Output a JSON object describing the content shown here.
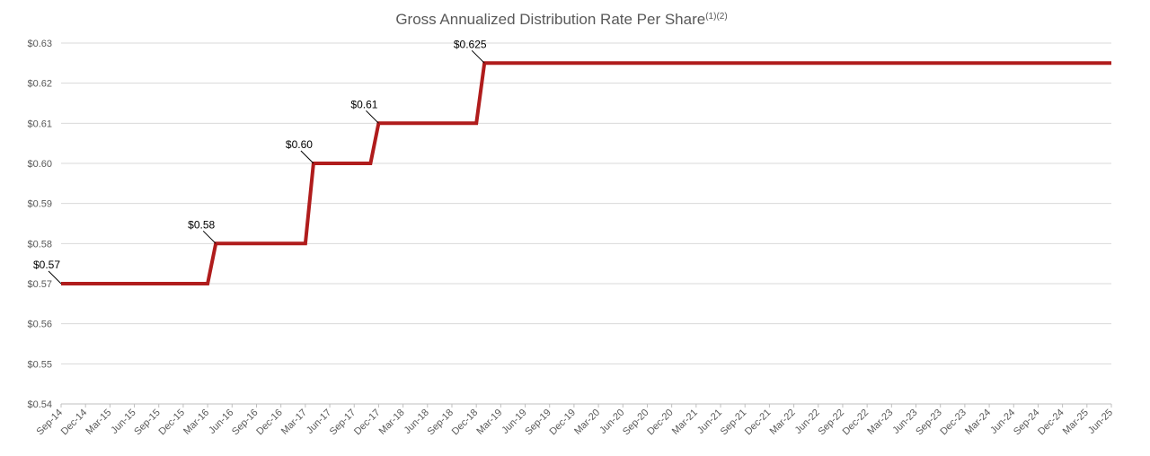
{
  "chart_data": {
    "type": "line",
    "title": "Gross Annualized Distribution Rate Per Share",
    "title_superscript": "(1)(2)",
    "xlabel": "",
    "ylabel": "",
    "ylim": [
      0.54,
      0.63
    ],
    "yticks": [
      "$0.54",
      "$0.55",
      "$0.56",
      "$0.57",
      "$0.58",
      "$0.59",
      "$0.60",
      "$0.61",
      "$0.62",
      "$0.63"
    ],
    "categories": [
      "Sep-14",
      "Dec-14",
      "Mar-15",
      "Jun-15",
      "Sep-15",
      "Dec-15",
      "Mar-16",
      "Jun-16",
      "Sep-16",
      "Dec-16",
      "Mar-17",
      "Jun-17",
      "Sep-17",
      "Dec-17",
      "Mar-18",
      "Jun-18",
      "Sep-18",
      "Dec-18",
      "Mar-19",
      "Jun-19",
      "Sep-19",
      "Dec-19",
      "Mar-20",
      "Jun-20",
      "Sep-20",
      "Dec-20",
      "Mar-21",
      "Jun-21",
      "Sep-21",
      "Dec-21",
      "Mar-22",
      "Jun-22",
      "Sep-22",
      "Dec-22",
      "Mar-23",
      "Jun-23",
      "Sep-23",
      "Dec-23",
      "Mar-24",
      "Jun-24",
      "Sep-24",
      "Dec-24",
      "Mar-25",
      "Jun-25"
    ],
    "grid": true,
    "legend": "none",
    "color": "#b01c1c",
    "series": [
      {
        "points": [
          {
            "x": "2014-09",
            "y": 0.57
          },
          {
            "x": "2016-03",
            "y": 0.57
          },
          {
            "x": "2016-04",
            "y": 0.58
          },
          {
            "x": "2017-03",
            "y": 0.58
          },
          {
            "x": "2017-04",
            "y": 0.6
          },
          {
            "x": "2017-11",
            "y": 0.6
          },
          {
            "x": "2017-12",
            "y": 0.61
          },
          {
            "x": "2018-12",
            "y": 0.61
          },
          {
            "x": "2019-01",
            "y": 0.625
          },
          {
            "x": "2025-06",
            "y": 0.625
          }
        ]
      }
    ],
    "data_labels": [
      {
        "text": "$0.57",
        "x": "2014-09",
        "y": 0.57
      },
      {
        "text": "$0.58",
        "x": "2016-04",
        "y": 0.58
      },
      {
        "text": "$0.60",
        "x": "2017-04",
        "y": 0.6
      },
      {
        "text": "$0.61",
        "x": "2017-12",
        "y": 0.61
      },
      {
        "text": "$0.625",
        "x": "2019-01",
        "y": 0.625
      }
    ]
  }
}
